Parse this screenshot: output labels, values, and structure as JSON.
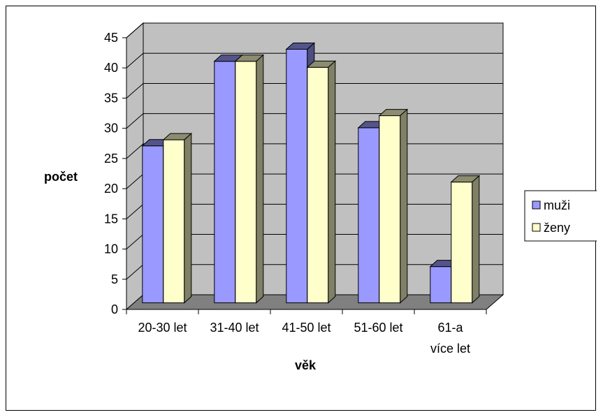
{
  "chart_data": {
    "type": "bar",
    "categories": [
      [
        "20-30 let"
      ],
      [
        "31-40 let"
      ],
      [
        "41-50 let"
      ],
      [
        "51-60 let"
      ],
      [
        "61-a",
        "více let"
      ]
    ],
    "series": [
      {
        "name": "muži",
        "values": [
          26,
          40,
          42,
          29,
          6
        ],
        "color": "#9999ff"
      },
      {
        "name": "ženy",
        "values": [
          27,
          40,
          39,
          31,
          20
        ],
        "color": "#ffffcc"
      }
    ],
    "xlabel": "věk",
    "ylabel": "počet",
    "ylim": [
      0,
      45
    ],
    "yticks": [
      0,
      5,
      10,
      15,
      20,
      25,
      30,
      35,
      40,
      45
    ],
    "grid": true,
    "legend": "right",
    "style": "3d-clustered-column",
    "wall_color": "#c0c0c0",
    "floor_color": "#808080"
  }
}
